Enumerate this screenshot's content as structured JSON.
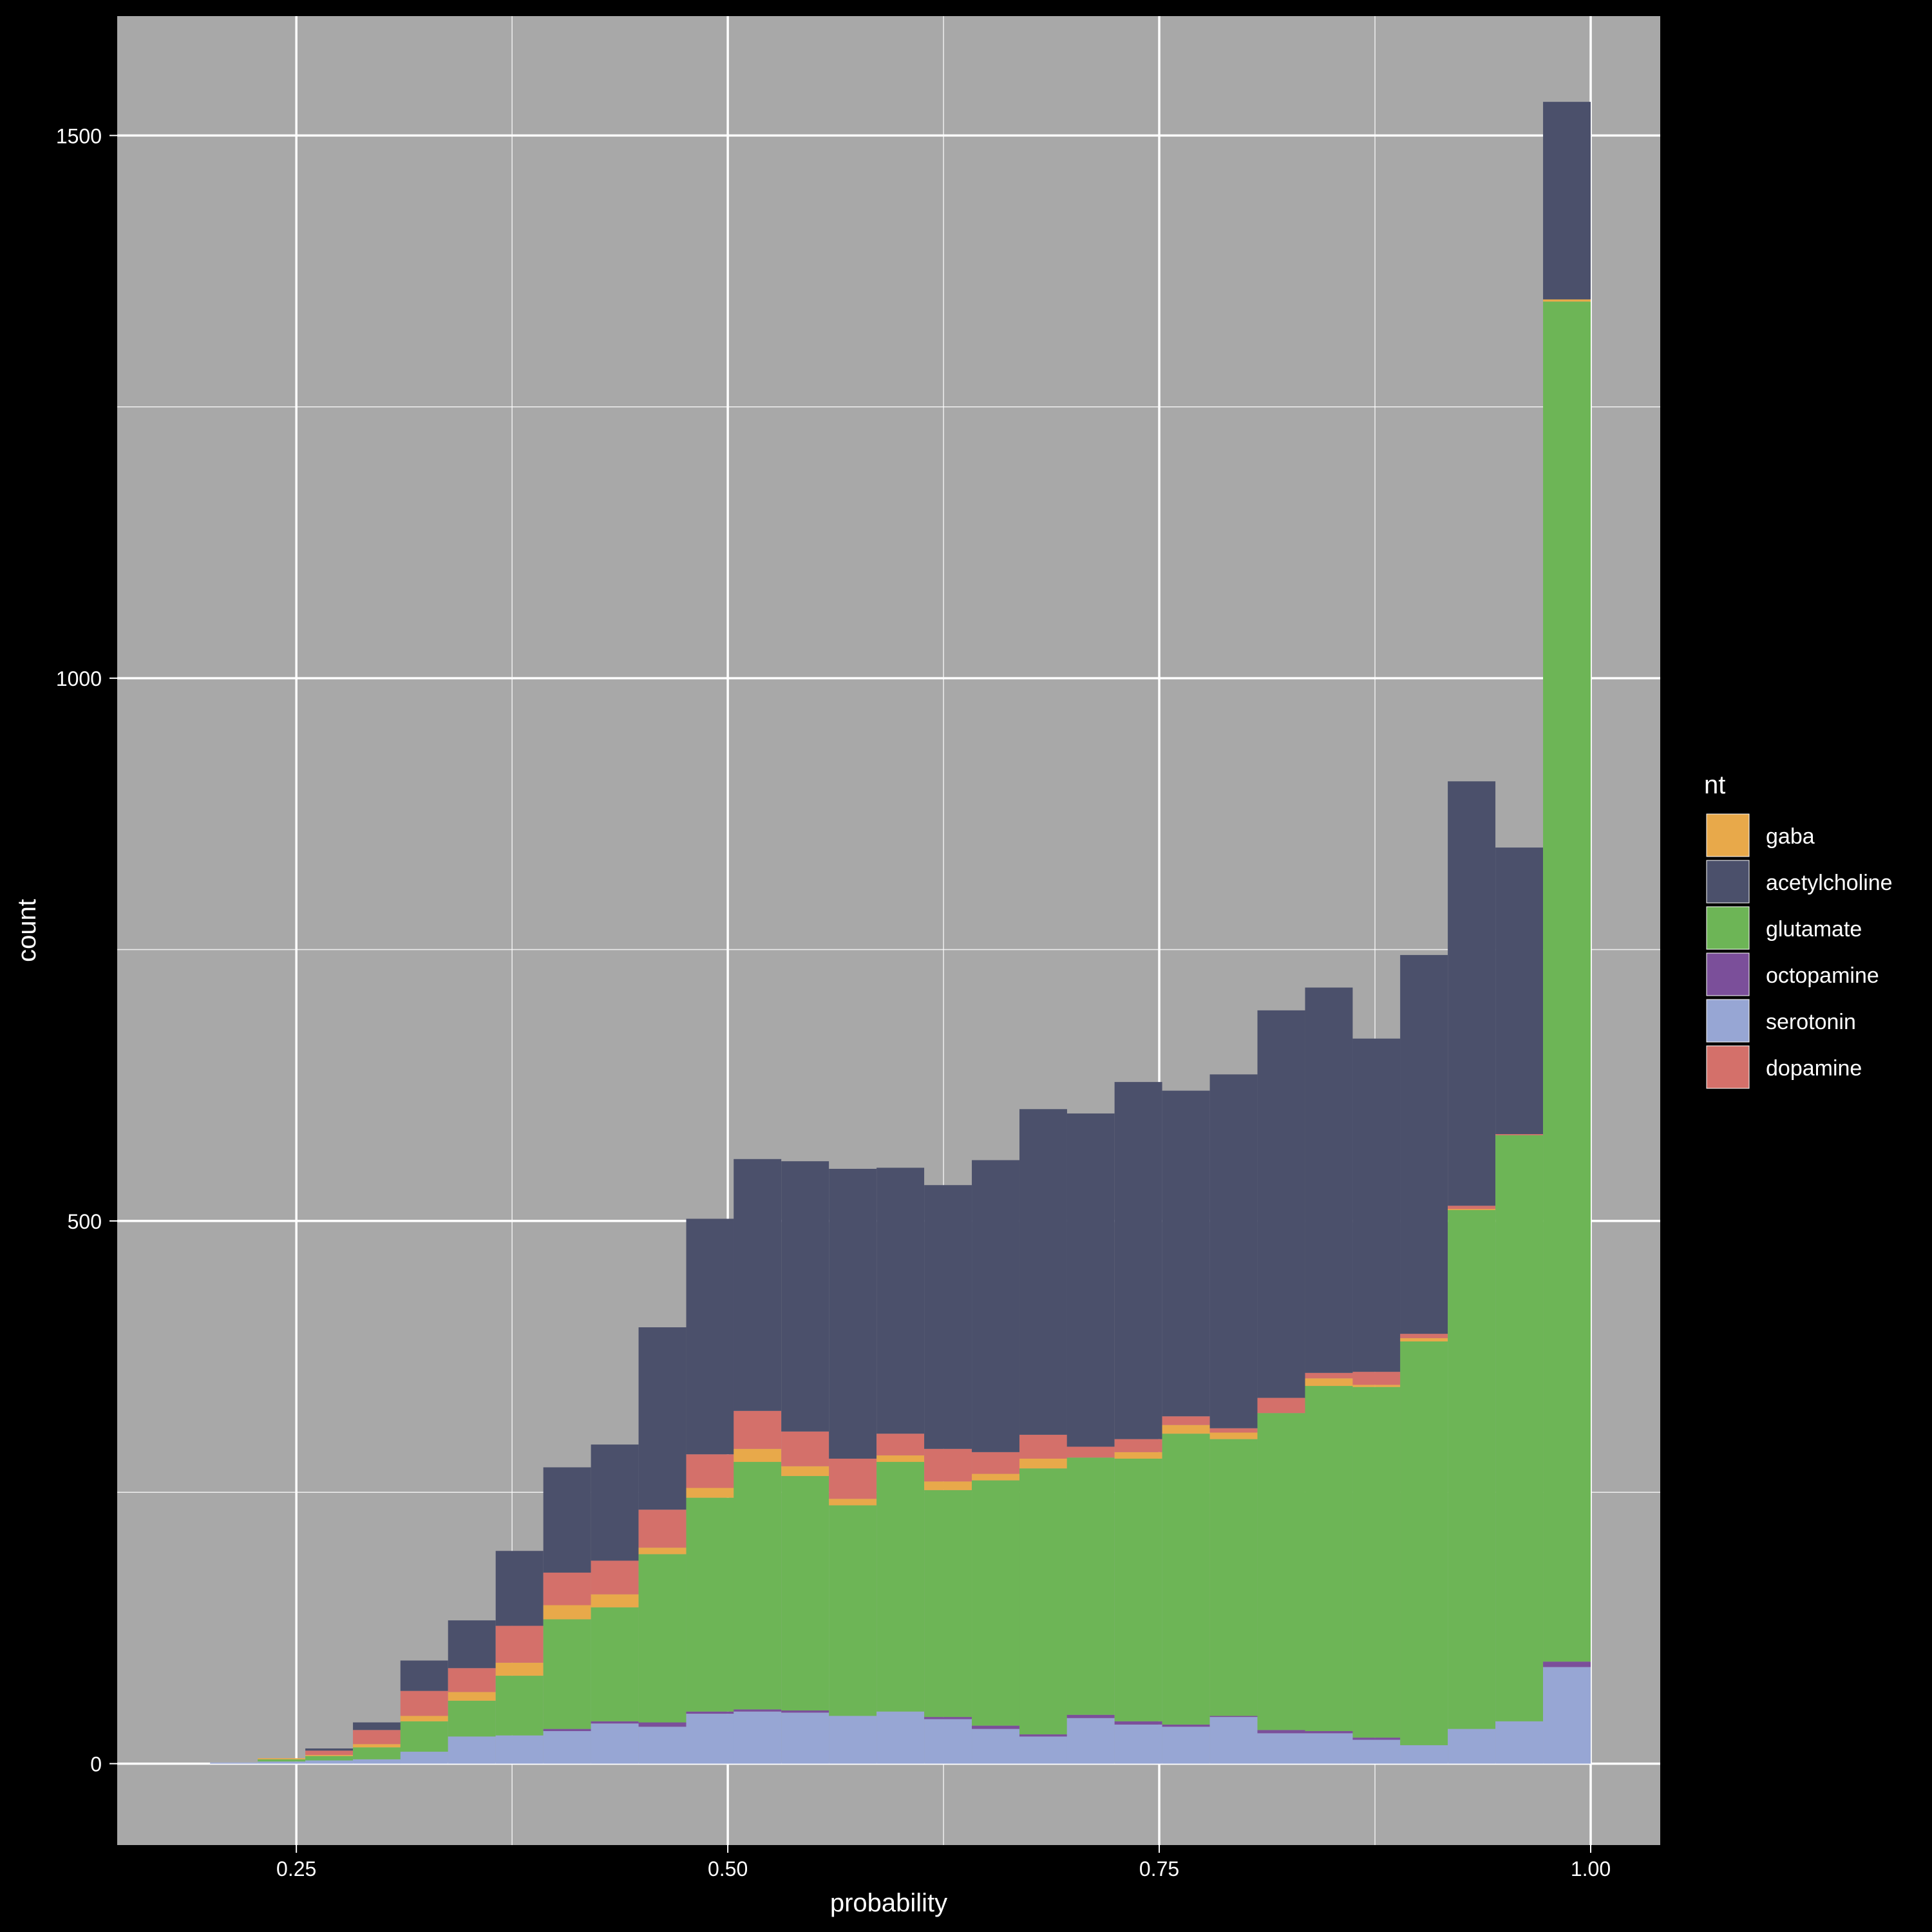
{
  "chart_data": {
    "type": "bar",
    "stacked": true,
    "xlabel": "probability",
    "ylabel": "count",
    "xlim": [
      0.1462,
      1.0403
    ],
    "ylim": [
      -75,
      1610
    ],
    "x_ticks": [
      0.25,
      0.5,
      0.75,
      1.0
    ],
    "x_tick_labels": [
      "0.25",
      "0.50",
      "0.75",
      "1.00"
    ],
    "y_ticks": [
      0,
      500,
      1000,
      1500
    ],
    "y_tick_labels": [
      "0",
      "500",
      "1000",
      "1500"
    ],
    "grid": true,
    "legend": {
      "title": "nt",
      "position": "right"
    },
    "bin_width": 0.02759,
    "bins": [
      0.1862,
      0.2138,
      0.2414,
      0.269,
      0.2966,
      0.3241,
      0.3517,
      0.3793,
      0.4069,
      0.4345,
      0.4621,
      0.4897,
      0.5172,
      0.5448,
      0.5724,
      0.6,
      0.6276,
      0.6552,
      0.6828,
      0.7103,
      0.7379,
      0.7655,
      0.7931,
      0.8207,
      0.8483,
      0.8759,
      0.9034,
      0.931,
      0.9586,
      0.9862
    ],
    "stack_order": [
      "serotonin",
      "octopamine",
      "glutamate",
      "gaba",
      "dopamine",
      "acetylcholine"
    ],
    "series": [
      {
        "name": "gaba",
        "color": "#e8a94a",
        "values": [
          0,
          0,
          1,
          1,
          3,
          5,
          8,
          12,
          13,
          12,
          6,
          9,
          12,
          9,
          6,
          6,
          8,
          6,
          9,
          0,
          6,
          8,
          6,
          0,
          7,
          2,
          3,
          1,
          0,
          2
        ]
      },
      {
        "name": "acetylcholine",
        "color": "#4b506b",
        "values": [
          0,
          0,
          0,
          2,
          7,
          28,
          44,
          69,
          97,
          107,
          168,
          217,
          232,
          249,
          267,
          245,
          243,
          269,
          300,
          307,
          329,
          300,
          326,
          357,
          355,
          307,
          349,
          391,
          264,
          182
        ]
      },
      {
        "name": "glutamate",
        "color": "#6db556",
        "values": [
          0,
          0,
          2,
          4,
          11,
          28,
          33,
          55,
          101,
          105,
          155,
          197,
          228,
          216,
          194,
          230,
          209,
          226,
          245,
          237,
          242,
          268,
          255,
          292,
          318,
          323,
          372,
          478,
          540,
          1253
        ]
      },
      {
        "name": "octopamine",
        "color": "#7b4f9a",
        "values": [
          0,
          0,
          0,
          0,
          0,
          0,
          0,
          0,
          2,
          2,
          4,
          2,
          2,
          2,
          0,
          0,
          2,
          3,
          2,
          3,
          3,
          2,
          1,
          3,
          2,
          2,
          0,
          0,
          0,
          5
        ]
      },
      {
        "name": "serotonin",
        "color": "#97a6d4",
        "values": [
          0,
          1,
          2,
          3,
          4,
          11,
          25,
          26,
          30,
          37,
          34,
          46,
          48,
          47,
          44,
          48,
          41,
          32,
          25,
          42,
          36,
          34,
          43,
          28,
          28,
          22,
          17,
          32,
          39,
          89
        ]
      },
      {
        "name": "dopamine",
        "color": "#d4706a",
        "values": [
          0,
          0,
          0,
          4,
          13,
          23,
          22,
          34,
          30,
          31,
          35,
          31,
          35,
          32,
          37,
          20,
          30,
          20,
          22,
          10,
          12,
          8,
          4,
          14,
          5,
          12,
          4,
          3,
          1,
          0
        ]
      }
    ]
  }
}
